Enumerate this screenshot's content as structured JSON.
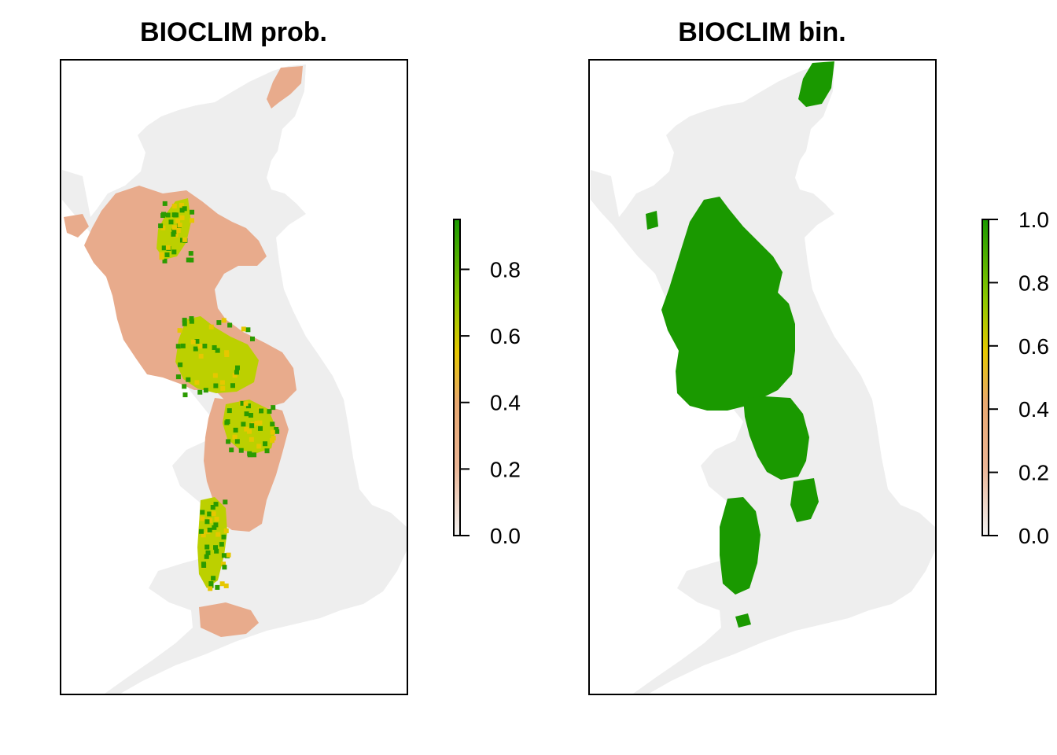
{
  "panels": [
    {
      "title": "BIOCLIM prob.",
      "mode": "probability",
      "legend": {
        "min": 0.0,
        "max": 0.95,
        "ticks": [
          {
            "value": 0.0,
            "label": "0.0"
          },
          {
            "value": 0.2,
            "label": "0.2"
          },
          {
            "value": 0.4,
            "label": "0.4"
          },
          {
            "value": 0.6,
            "label": "0.6"
          },
          {
            "value": 0.8,
            "label": "0.8"
          }
        ]
      }
    },
    {
      "title": "BIOCLIM bin.",
      "mode": "binary",
      "legend": {
        "min": 0.0,
        "max": 1.0,
        "ticks": [
          {
            "value": 0.0,
            "label": "0.0"
          },
          {
            "value": 0.2,
            "label": "0.2"
          },
          {
            "value": 0.4,
            "label": "0.4"
          },
          {
            "value": 0.6,
            "label": "0.6"
          },
          {
            "value": 0.8,
            "label": "0.8"
          },
          {
            "value": 1.0,
            "label": "1.0"
          }
        ]
      }
    }
  ],
  "colors": {
    "land_background": "#eeeeee",
    "binary_presence": "#1a9900",
    "ramp": [
      "#f2f2f2",
      "#ebb595",
      "#e8a870",
      "#e6c700",
      "#8bc800",
      "#1a9900"
    ]
  }
}
